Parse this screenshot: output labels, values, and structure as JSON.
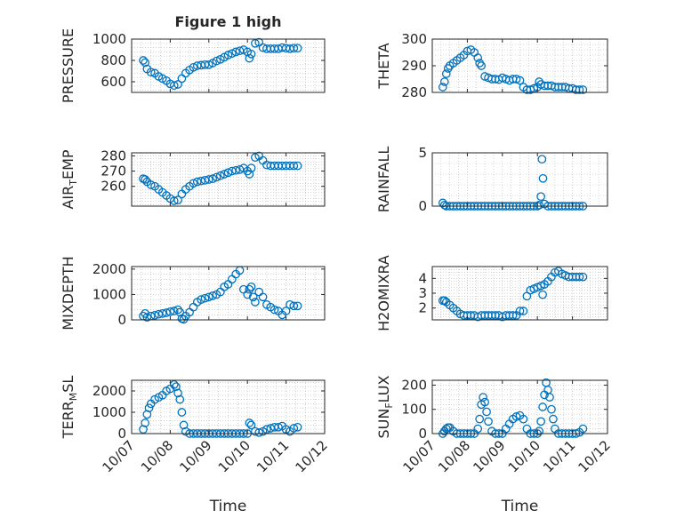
{
  "figure_title": "Figure 1 high",
  "x_axis": {
    "label": "Time",
    "ticks": [
      7,
      8,
      9,
      10,
      11,
      12
    ],
    "tick_labels": [
      "10/07",
      "10/08",
      "10/09",
      "10/10",
      "10/11",
      "10/12"
    ],
    "range": [
      7,
      12
    ]
  },
  "colors": {
    "marker": "#0072BD",
    "axes": "#262626",
    "grid": "#b8b8b8"
  },
  "chart_data": [
    {
      "type": "scatter",
      "title": "Figure 1 high",
      "ylabel": "PRESSURE",
      "ylim": [
        500,
        1000
      ],
      "yticks": [
        600,
        800,
        1000
      ],
      "yticklabels": [
        "600",
        "800",
        "1000"
      ],
      "xtick_labels_visible": false,
      "x": [
        7.3,
        7.35,
        7.4,
        7.5,
        7.6,
        7.7,
        7.8,
        7.9,
        8.0,
        8.1,
        8.2,
        8.3,
        8.4,
        8.5,
        8.6,
        8.7,
        8.8,
        8.9,
        9.0,
        9.1,
        9.2,
        9.3,
        9.4,
        9.5,
        9.6,
        9.7,
        9.8,
        9.9,
        10.0,
        10.05,
        10.1,
        10.2,
        10.3,
        10.4,
        10.5,
        10.6,
        10.7,
        10.8,
        10.9,
        11.0,
        11.1,
        11.2,
        11.3
      ],
      "y": [
        800,
        780,
        720,
        690,
        680,
        650,
        630,
        610,
        580,
        565,
        575,
        630,
        680,
        710,
        735,
        750,
        755,
        760,
        760,
        775,
        795,
        810,
        830,
        850,
        865,
        880,
        890,
        900,
        880,
        820,
        860,
        960,
        970,
        920,
        910,
        910,
        910,
        910,
        920,
        915,
        910,
        915,
        915
      ]
    },
    {
      "type": "scatter",
      "title": "",
      "ylabel": "THETA",
      "ylim": [
        280,
        300
      ],
      "yticks": [
        280,
        290,
        300
      ],
      "yticklabels": [
        "280",
        "290",
        "300"
      ],
      "xtick_labels_visible": false,
      "x": [
        7.3,
        7.35,
        7.4,
        7.45,
        7.5,
        7.6,
        7.7,
        7.8,
        7.9,
        8.0,
        8.1,
        8.2,
        8.3,
        8.35,
        8.4,
        8.5,
        8.6,
        8.7,
        8.8,
        8.9,
        9.0,
        9.1,
        9.2,
        9.3,
        9.4,
        9.5,
        9.6,
        9.7,
        9.8,
        9.9,
        10.0,
        10.05,
        10.1,
        10.2,
        10.3,
        10.4,
        10.5,
        10.6,
        10.7,
        10.8,
        10.9,
        11.0,
        11.1,
        11.2,
        11.3
      ],
      "y": [
        282,
        284,
        287,
        289,
        290,
        291,
        292,
        293,
        294,
        295.5,
        296,
        295,
        293,
        291,
        290,
        286,
        285.5,
        285,
        285,
        284.8,
        285.5,
        285,
        284.5,
        285,
        285,
        284.5,
        282,
        281,
        281,
        281.5,
        282,
        284,
        283,
        282.5,
        282.5,
        282.5,
        282,
        282,
        282,
        282,
        281.5,
        281.5,
        281,
        281,
        281
      ]
    },
    {
      "type": "scatter",
      "title": "",
      "ylabel": "AIR_TEMP",
      "ylim": [
        247,
        282
      ],
      "yticks": [
        260,
        270,
        280
      ],
      "yticklabels": [
        "260",
        "270",
        "280"
      ],
      "xtick_labels_visible": false,
      "x": [
        7.3,
        7.35,
        7.4,
        7.5,
        7.6,
        7.7,
        7.8,
        7.9,
        8.0,
        8.1,
        8.2,
        8.3,
        8.4,
        8.5,
        8.6,
        8.7,
        8.8,
        8.9,
        9.0,
        9.1,
        9.2,
        9.3,
        9.4,
        9.5,
        9.6,
        9.7,
        9.8,
        9.9,
        10.0,
        10.05,
        10.1,
        10.2,
        10.3,
        10.4,
        10.5,
        10.6,
        10.7,
        10.8,
        10.9,
        11.0,
        11.1,
        11.2,
        11.3
      ],
      "y": [
        265,
        264.5,
        263,
        261,
        260,
        258,
        256,
        254,
        252,
        250.5,
        251,
        255,
        258,
        260,
        262,
        263,
        263.5,
        264,
        264.5,
        265,
        266,
        267,
        268,
        269,
        270,
        270.5,
        271,
        272,
        270,
        268,
        272,
        279,
        280,
        277,
        274,
        273.5,
        273.5,
        273.5,
        273.5,
        273.5,
        273.5,
        273.5,
        273.5
      ]
    },
    {
      "type": "scatter",
      "title": "",
      "ylabel": "RAINFALL",
      "ylim": [
        0,
        5
      ],
      "yticks": [
        0,
        5
      ],
      "yticklabels": [
        "0",
        "5"
      ],
      "xtick_labels_visible": false,
      "x": [
        7.3,
        7.35,
        7.4,
        7.5,
        7.6,
        7.7,
        7.8,
        7.9,
        8.0,
        8.1,
        8.2,
        8.3,
        8.4,
        8.5,
        8.6,
        8.7,
        8.8,
        8.9,
        9.0,
        9.1,
        9.2,
        9.3,
        9.4,
        9.5,
        9.6,
        9.7,
        9.8,
        9.9,
        10.0,
        10.05,
        10.1,
        10.13,
        10.16,
        10.2,
        10.3,
        10.4,
        10.5,
        10.6,
        10.7,
        10.8,
        10.9,
        11.0,
        11.1,
        11.2,
        11.3
      ],
      "y": [
        0.3,
        0.1,
        0,
        0,
        0,
        0,
        0,
        0,
        0,
        0,
        0,
        0,
        0,
        0,
        0,
        0,
        0,
        0,
        0,
        0,
        0,
        0,
        0,
        0,
        0,
        0,
        0,
        0,
        0,
        0.1,
        0.9,
        4.4,
        2.6,
        0.2,
        0,
        0,
        0,
        0,
        0,
        0,
        0,
        0,
        0,
        0,
        0
      ]
    },
    {
      "type": "scatter",
      "title": "",
      "ylabel": "MIXDEPTH",
      "ylim": [
        0,
        2100
      ],
      "yticks": [
        0,
        1000,
        2000
      ],
      "yticklabels": [
        "0",
        "1000",
        "2000"
      ],
      "xtick_labels_visible": false,
      "x": [
        7.3,
        7.35,
        7.4,
        7.5,
        7.6,
        7.7,
        7.8,
        7.9,
        8.0,
        8.1,
        8.2,
        8.25,
        8.3,
        8.35,
        8.4,
        8.5,
        8.6,
        8.7,
        8.8,
        8.9,
        9.0,
        9.1,
        9.2,
        9.3,
        9.4,
        9.5,
        9.6,
        9.7,
        9.8,
        9.9,
        10.0,
        10.05,
        10.1,
        10.15,
        10.2,
        10.3,
        10.4,
        10.5,
        10.6,
        10.7,
        10.8,
        10.9,
        11.0,
        11.1,
        11.2,
        11.3
      ],
      "y": [
        150,
        250,
        100,
        150,
        180,
        220,
        250,
        280,
        320,
        350,
        400,
        300,
        50,
        20,
        150,
        300,
        500,
        700,
        800,
        850,
        900,
        950,
        1000,
        1100,
        1300,
        1400,
        1600,
        1800,
        1950,
        1200,
        1000,
        1200,
        1300,
        900,
        700,
        1100,
        900,
        600,
        500,
        400,
        350,
        200,
        350,
        600,
        550,
        550
      ]
    },
    {
      "type": "scatter",
      "title": "",
      "ylabel": "H2OMIXRA",
      "ylim": [
        1.2,
        4.8
      ],
      "yticks": [
        2,
        3,
        4
      ],
      "yticklabels": [
        "2",
        "3",
        "4"
      ],
      "xtick_labels_visible": false,
      "x": [
        7.3,
        7.35,
        7.4,
        7.5,
        7.6,
        7.7,
        7.8,
        7.9,
        8.0,
        8.1,
        8.2,
        8.3,
        8.4,
        8.5,
        8.6,
        8.7,
        8.8,
        8.9,
        9.0,
        9.1,
        9.2,
        9.3,
        9.4,
        9.5,
        9.6,
        9.7,
        9.8,
        9.9,
        10.0,
        10.1,
        10.15,
        10.2,
        10.3,
        10.4,
        10.5,
        10.6,
        10.7,
        10.8,
        10.9,
        11.0,
        11.1,
        11.2,
        11.3
      ],
      "y": [
        2.5,
        2.5,
        2.4,
        2.2,
        2.0,
        1.8,
        1.6,
        1.5,
        1.5,
        1.5,
        1.5,
        1.4,
        1.5,
        1.5,
        1.5,
        1.5,
        1.5,
        1.5,
        1.4,
        1.5,
        1.5,
        1.5,
        1.5,
        1.8,
        1.8,
        2.8,
        3.2,
        3.3,
        3.4,
        3.5,
        2.9,
        3.6,
        3.8,
        4.1,
        4.4,
        4.5,
        4.3,
        4.2,
        4.1,
        4.1,
        4.1,
        4.1,
        4.1
      ]
    },
    {
      "type": "scatter",
      "title": "",
      "ylabel": "TERR_MSL",
      "ylim": [
        0,
        2500
      ],
      "yticks": [
        0,
        1000,
        2000
      ],
      "yticklabels": [
        "0",
        "1000",
        "2000"
      ],
      "xtick_labels_visible": true,
      "x": [
        7.3,
        7.35,
        7.4,
        7.45,
        7.5,
        7.6,
        7.7,
        7.8,
        7.9,
        8.0,
        8.1,
        8.15,
        8.2,
        8.25,
        8.3,
        8.35,
        8.4,
        8.5,
        8.6,
        8.7,
        8.8,
        8.9,
        9.0,
        9.1,
        9.2,
        9.3,
        9.4,
        9.5,
        9.6,
        9.7,
        9.8,
        9.9,
        10.0,
        10.05,
        10.1,
        10.2,
        10.3,
        10.4,
        10.5,
        10.6,
        10.7,
        10.8,
        10.9,
        11.0,
        11.1,
        11.2,
        11.3
      ],
      "y": [
        200,
        500,
        900,
        1200,
        1400,
        1600,
        1700,
        1800,
        2000,
        2100,
        2300,
        2200,
        1900,
        1600,
        1000,
        400,
        100,
        0,
        0,
        0,
        0,
        0,
        0,
        0,
        0,
        0,
        0,
        0,
        0,
        0,
        0,
        0,
        0,
        500,
        400,
        100,
        50,
        100,
        200,
        250,
        300,
        300,
        350,
        200,
        100,
        250,
        300
      ]
    },
    {
      "type": "scatter",
      "title": "",
      "ylabel": "SUN_FLUX",
      "ylim": [
        0,
        220
      ],
      "yticks": [
        0,
        100,
        200
      ],
      "yticklabels": [
        "0",
        "100",
        "200"
      ],
      "xtick_labels_visible": true,
      "x": [
        7.3,
        7.35,
        7.4,
        7.45,
        7.5,
        7.6,
        7.7,
        7.8,
        7.9,
        8.0,
        8.1,
        8.2,
        8.3,
        8.35,
        8.4,
        8.45,
        8.5,
        8.55,
        8.6,
        8.7,
        8.8,
        8.9,
        9.0,
        9.1,
        9.2,
        9.3,
        9.4,
        9.5,
        9.6,
        9.7,
        9.8,
        9.9,
        10.0,
        10.05,
        10.1,
        10.15,
        10.2,
        10.25,
        10.3,
        10.35,
        10.4,
        10.45,
        10.5,
        10.6,
        10.7,
        10.8,
        10.9,
        11.0,
        11.1,
        11.2,
        11.3
      ],
      "y": [
        0,
        10,
        20,
        25,
        25,
        10,
        0,
        0,
        0,
        0,
        0,
        0,
        20,
        60,
        120,
        150,
        130,
        90,
        50,
        10,
        0,
        0,
        0,
        20,
        40,
        60,
        70,
        75,
        60,
        20,
        0,
        0,
        0,
        10,
        50,
        110,
        160,
        210,
        180,
        150,
        100,
        60,
        20,
        0,
        0,
        0,
        0,
        0,
        0,
        5,
        20
      ]
    }
  ]
}
